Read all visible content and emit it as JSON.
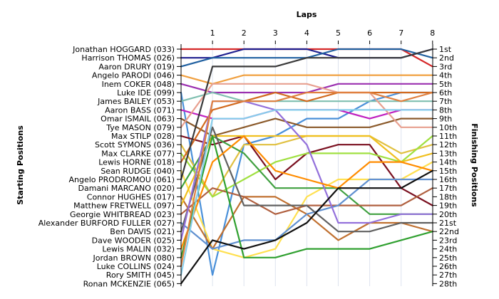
{
  "chart_data": {
    "type": "line",
    "title": "",
    "xlabel": "Laps",
    "ylabel_left": "Starting Positions",
    "ylabel_right": "Finishing Positions",
    "x": [
      1,
      2,
      3,
      4,
      5,
      6,
      7,
      8
    ],
    "xlim": [
      0,
      8
    ],
    "ylim": [
      1,
      28
    ],
    "y_inverted": true,
    "grid": true,
    "starting_positions": [
      "Jonathan HOGGARD (033)",
      "Harrison THOMAS (026)",
      "Aaron DRURY (019)",
      "Angelo PARODI (046)",
      "Inem COKER (048)",
      "Luke IDE (099)",
      "James BAILEY (053)",
      "Aaron BASS (071)",
      "Omar ISMAIL (063)",
      "Tye MASON (079)",
      "Max STILP (028)",
      "Scott SYMONS (036)",
      "Max CLARKE (077)",
      "Lewis HORNE (018)",
      "Sean RUDGE (040)",
      "Angelo PRODROMOU (061)",
      "Damani MARCANO (020)",
      "Connor HUGHES (017)",
      "Matthew FRETWELL (097)",
      "Georgie WHITBREAD (023)",
      "Alexander BURFORD FULLER (027)",
      "Ben DAVIS (021)",
      "Dave WOODER (025)",
      "Lewis MALIN (032)",
      "Jordan BROWN (080)",
      "Luke COLLINS (024)",
      "Rory SMITH (045)",
      "Ronan MCKENZIE (065)"
    ],
    "finishing_positions": [
      "1st",
      "2nd",
      "3rd",
      "4th",
      "5th",
      "6th",
      "7th",
      "8th",
      "9th",
      "10th",
      "11th",
      "12th",
      "13th",
      "14th",
      "15th",
      "16th",
      "17th",
      "18th",
      "19th",
      "20th",
      "21st",
      "22nd",
      "23rd",
      "24th",
      "25th",
      "26th",
      "27th",
      "28th"
    ],
    "series": [
      {
        "color": "#d62728",
        "positions": [
          1,
          1,
          1,
          1,
          1,
          1,
          1,
          1,
          3
        ]
      },
      {
        "color": "#1f1f8f",
        "positions": [
          2,
          2,
          1,
          1,
          1,
          2,
          2,
          2,
          1
        ]
      },
      {
        "color": "#2060a0",
        "positions": [
          3,
          2,
          2,
          2,
          2,
          1,
          1,
          1,
          2
        ]
      },
      {
        "color": "#f0a040",
        "positions": [
          4,
          5,
          4,
          4,
          4,
          4,
          4,
          4,
          4
        ]
      },
      {
        "color": "#9b30b0",
        "positions": [
          5,
          6,
          6,
          6,
          6,
          5,
          5,
          5,
          5
        ]
      },
      {
        "color": "#4a90d9",
        "positions": [
          6,
          27,
          12,
          11,
          9,
          9,
          7,
          6,
          6
        ]
      },
      {
        "color": "#7fbfb0",
        "positions": [
          7,
          6,
          7,
          7,
          7,
          7,
          7,
          7,
          7
        ]
      },
      {
        "color": "#c020c0",
        "positions": [
          8,
          9,
          9,
          8,
          8,
          8,
          9,
          8,
          8
        ]
      },
      {
        "color": "#8b5a2b",
        "positions": [
          9,
          11,
          10,
          9,
          10,
          10,
          10,
          9,
          9
        ]
      },
      {
        "color": "#e8a090",
        "positions": [
          10,
          5,
          5,
          5,
          5,
          6,
          6,
          10,
          10
        ]
      },
      {
        "color": "#7a1020",
        "positions": [
          11,
          12,
          11,
          16,
          13,
          12,
          12,
          17,
          19
        ]
      },
      {
        "color": "#e0c040",
        "positions": [
          12,
          18,
          12,
          12,
          11,
          11,
          11,
          13,
          12
        ]
      },
      {
        "color": "#a0e040",
        "positions": [
          13,
          18,
          16,
          14,
          13,
          13,
          13,
          14,
          11
        ]
      },
      {
        "color": "#d2691e",
        "positions": [
          14,
          8,
          7,
          6,
          7,
          6,
          6,
          6,
          6
        ]
      },
      {
        "color": "#ffe050",
        "positions": [
          15,
          24,
          25,
          24,
          18,
          16,
          16,
          16,
          14
        ]
      },
      {
        "color": "#3a3a3a",
        "positions": [
          16,
          3,
          3,
          3,
          2,
          2,
          2,
          2,
          1
        ]
      },
      {
        "color": "#40a040",
        "positions": [
          17,
          11,
          13,
          17,
          17,
          17,
          20,
          20,
          20
        ]
      },
      {
        "color": "#c07030",
        "positions": [
          18,
          24,
          18,
          18,
          20,
          23,
          21,
          21,
          22
        ]
      },
      {
        "color": "#f0c020",
        "positions": [
          19,
          11,
          11,
          11,
          11,
          11,
          11,
          14,
          13
        ]
      },
      {
        "color": "#b06040",
        "positions": [
          20,
          17,
          18,
          20,
          19,
          19,
          19,
          19,
          17
        ]
      },
      {
        "color": "#6090d0",
        "positions": [
          21,
          24,
          23,
          23,
          20,
          19,
          16,
          16,
          16
        ]
      },
      {
        "color": "#606060",
        "positions": [
          22,
          10,
          19,
          19,
          19,
          22,
          22,
          21,
          21
        ]
      },
      {
        "color": "#9370db",
        "positions": [
          23,
          7,
          7,
          8,
          12,
          21,
          21,
          20,
          20
        ]
      },
      {
        "color": "#ff8c00",
        "positions": [
          24,
          14,
          11,
          15,
          16,
          17,
          14,
          14,
          15
        ]
      },
      {
        "color": "#30a030",
        "positions": [
          25,
          11,
          25,
          25,
          24,
          24,
          24,
          23,
          22
        ]
      },
      {
        "color": "#e08040",
        "positions": [
          26,
          7,
          7,
          7,
          6,
          6,
          6,
          7,
          6
        ]
      },
      {
        "color": "#87ceeb",
        "positions": [
          27,
          9,
          9,
          8,
          8,
          8,
          8,
          8,
          8
        ]
      },
      {
        "color": "#101010",
        "positions": [
          28,
          23,
          24,
          23,
          21,
          17,
          17,
          17,
          15
        ]
      }
    ]
  }
}
